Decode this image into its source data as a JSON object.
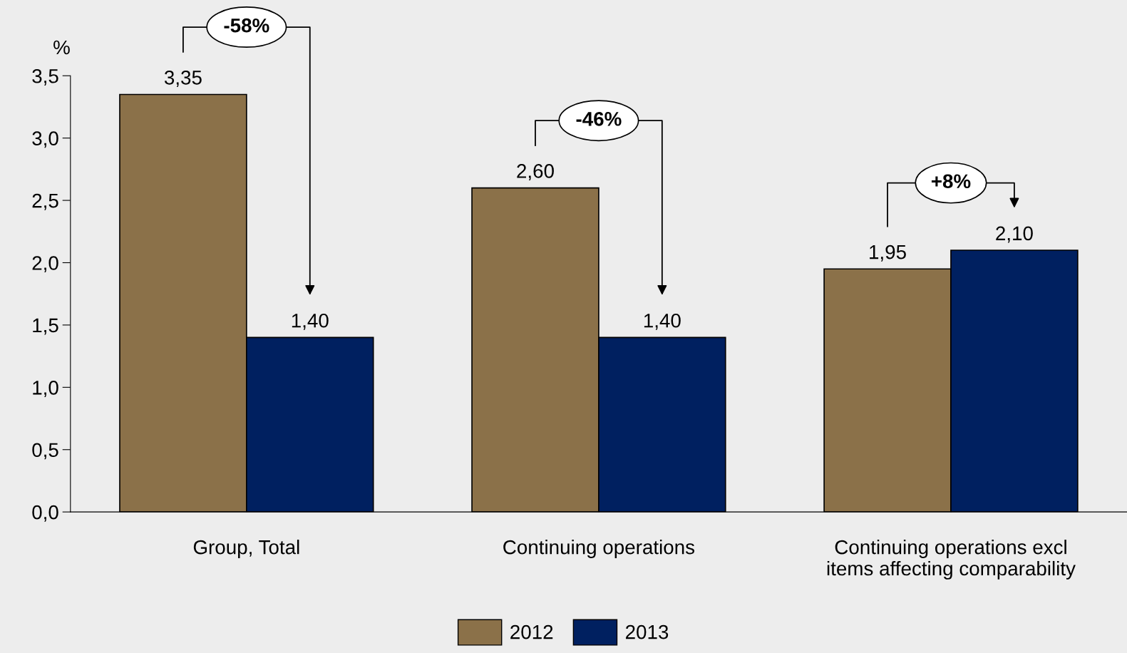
{
  "chart_data": {
    "type": "bar",
    "ylabel": "%",
    "categories": [
      "Group, Total",
      "Continuing operations",
      "Continuing operations excl\nitems affecting comparability"
    ],
    "series": [
      {
        "name": "2012",
        "color": "#8b7149",
        "values": [
          3.35,
          2.6,
          1.95
        ],
        "value_labels": [
          "3,35",
          "2,60",
          "1,95"
        ]
      },
      {
        "name": "2013",
        "color": "#002060",
        "values": [
          1.4,
          1.4,
          2.1
        ],
        "value_labels": [
          "1,40",
          "1,40",
          "2,10"
        ]
      }
    ],
    "ylim": [
      0,
      3.5
    ],
    "yticks": [
      {
        "value": 0,
        "label": "0,0"
      },
      {
        "value": 0.5,
        "label": "0,5"
      },
      {
        "value": 1.0,
        "label": "1,0"
      },
      {
        "value": 1.5,
        "label": "1,5"
      },
      {
        "value": 2.0,
        "label": "2,0"
      },
      {
        "value": 2.5,
        "label": "2,5"
      },
      {
        "value": 3.0,
        "label": "3,0"
      },
      {
        "value": 3.5,
        "label": "3,5"
      }
    ],
    "annotations": [
      "-58%",
      "-46%",
      "+8%"
    ],
    "grid": false,
    "legend": "bottom"
  }
}
